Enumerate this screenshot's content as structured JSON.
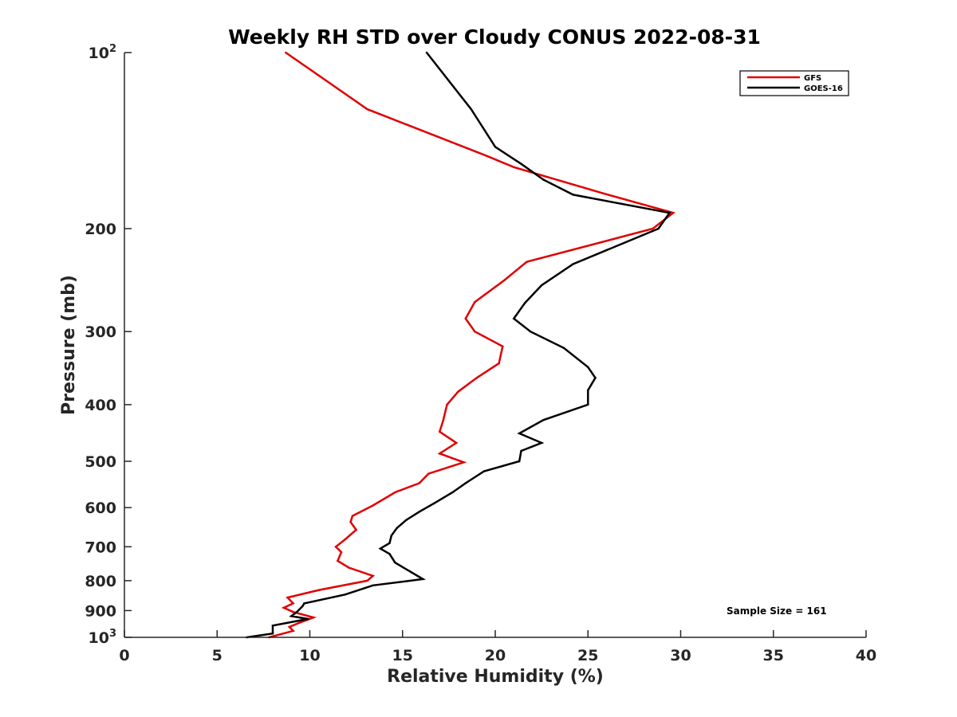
{
  "chart_data": {
    "type": "line",
    "title": "Weekly RH STD over Cloudy CONUS 2022-08-31",
    "xlabel": "Relative Humidity (%)",
    "ylabel": "Pressure (mb)",
    "xlim": [
      0,
      40
    ],
    "ylim": [
      100,
      1000
    ],
    "y_scale": "log",
    "y_reversed": true,
    "x_ticks": [
      0,
      5,
      10,
      15,
      20,
      25,
      30,
      35,
      40
    ],
    "x_tick_labels": [
      "0",
      "5",
      "10",
      "15",
      "20",
      "25",
      "30",
      "35",
      "40"
    ],
    "y_ticks": [
      100,
      200,
      300,
      400,
      500,
      600,
      700,
      800,
      900,
      1000
    ],
    "y_tick_labels": [
      "10^2",
      "200",
      "300",
      "400",
      "500",
      "600",
      "700",
      "800",
      "900",
      "10^3"
    ],
    "grid": false,
    "legend_position": "top-right",
    "annotation": "Sample Size = 161",
    "series": [
      {
        "name": "GFS",
        "color": "#e00000",
        "points": [
          [
            8.7,
            100
          ],
          [
            13.1,
            125
          ],
          [
            19.5,
            150
          ],
          [
            21.0,
            157
          ],
          [
            25.8,
            174
          ],
          [
            29.6,
            188
          ],
          [
            28.5,
            200
          ],
          [
            21.7,
            228
          ],
          [
            20.5,
            245
          ],
          [
            18.9,
            267
          ],
          [
            18.4,
            285
          ],
          [
            18.9,
            300
          ],
          [
            20.4,
            318
          ],
          [
            20.2,
            340
          ],
          [
            19.0,
            360
          ],
          [
            18.0,
            380
          ],
          [
            17.4,
            400
          ],
          [
            17.2,
            425
          ],
          [
            17.0,
            445
          ],
          [
            17.9,
            465
          ],
          [
            17.0,
            485
          ],
          [
            18.3,
            502
          ],
          [
            16.4,
            525
          ],
          [
            15.9,
            545
          ],
          [
            14.6,
            565
          ],
          [
            13.4,
            595
          ],
          [
            12.3,
            620
          ],
          [
            12.2,
            635
          ],
          [
            12.5,
            655
          ],
          [
            11.9,
            680
          ],
          [
            11.4,
            700
          ],
          [
            11.7,
            715
          ],
          [
            11.5,
            740
          ],
          [
            12.1,
            760
          ],
          [
            13.4,
            785
          ],
          [
            13.1,
            800
          ],
          [
            10.5,
            830
          ],
          [
            8.8,
            855
          ],
          [
            9.1,
            875
          ],
          [
            8.6,
            890
          ],
          [
            9.1,
            905
          ],
          [
            10.2,
            925
          ],
          [
            9.4,
            945
          ],
          [
            8.9,
            960
          ],
          [
            9.1,
            975
          ],
          [
            7.8,
            1000
          ]
        ]
      },
      {
        "name": "GOES-16",
        "color": "#000000",
        "points": [
          [
            16.3,
            100
          ],
          [
            18.7,
            125
          ],
          [
            20.0,
            145
          ],
          [
            21.4,
            155
          ],
          [
            22.6,
            165
          ],
          [
            24.2,
            175
          ],
          [
            29.4,
            188
          ],
          [
            28.8,
            200
          ],
          [
            24.2,
            230
          ],
          [
            22.5,
            250
          ],
          [
            21.6,
            268
          ],
          [
            21.0,
            285
          ],
          [
            21.9,
            300
          ],
          [
            23.7,
            320
          ],
          [
            25.0,
            345
          ],
          [
            25.4,
            360
          ],
          [
            25.0,
            378
          ],
          [
            25.0,
            400
          ],
          [
            22.6,
            425
          ],
          [
            21.3,
            448
          ],
          [
            22.5,
            465
          ],
          [
            21.4,
            480
          ],
          [
            21.3,
            500
          ],
          [
            19.4,
            520
          ],
          [
            18.4,
            545
          ],
          [
            17.7,
            565
          ],
          [
            16.7,
            590
          ],
          [
            15.9,
            610
          ],
          [
            15.2,
            630
          ],
          [
            14.7,
            650
          ],
          [
            14.4,
            670
          ],
          [
            14.3,
            690
          ],
          [
            13.8,
            705
          ],
          [
            14.3,
            720
          ],
          [
            14.6,
            745
          ],
          [
            16.1,
            795
          ],
          [
            13.4,
            815
          ],
          [
            11.9,
            845
          ],
          [
            9.7,
            875
          ],
          [
            9.6,
            885
          ],
          [
            9.3,
            905
          ],
          [
            9.0,
            920
          ],
          [
            9.9,
            930
          ],
          [
            8.0,
            955
          ],
          [
            8.0,
            985
          ],
          [
            6.6,
            1000
          ]
        ]
      }
    ]
  }
}
